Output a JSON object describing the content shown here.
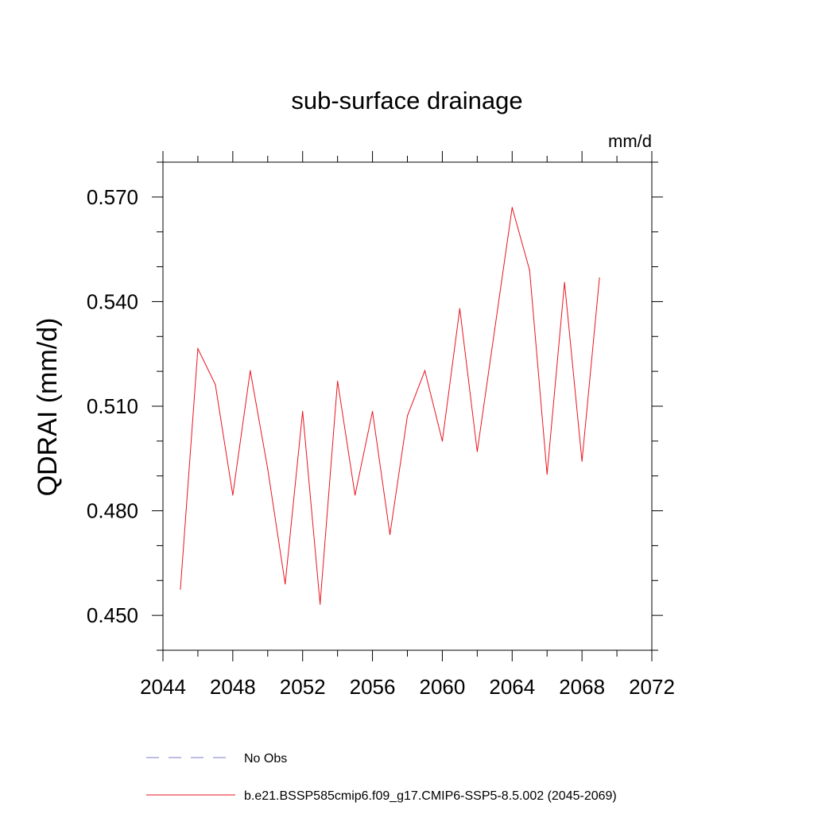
{
  "chart_data": {
    "type": "line",
    "title": "sub-surface drainage",
    "units_label": "mm/d",
    "xlabel": "",
    "ylabel": "QDRAI  (mm/d)",
    "xlim": [
      2044,
      2072
    ],
    "ylim": [
      0.44,
      0.58
    ],
    "x_ticks": [
      2044,
      2048,
      2052,
      2056,
      2060,
      2064,
      2068,
      2072
    ],
    "x_tick_labels": [
      "2044",
      "2048",
      "2052",
      "2056",
      "2060",
      "2064",
      "2068",
      "2072"
    ],
    "x_minor_ticks": [
      2046,
      2050,
      2054,
      2058,
      2062,
      2066,
      2070
    ],
    "y_ticks": [
      0.45,
      0.48,
      0.51,
      0.54,
      0.57
    ],
    "y_tick_labels": [
      "0.450",
      "0.480",
      "0.510",
      "0.540",
      "0.570"
    ],
    "y_minor_ticks": [
      0.44,
      0.46,
      0.47,
      0.49,
      0.5,
      0.52,
      0.53,
      0.55,
      0.56,
      0.58
    ],
    "grid": false,
    "series": [
      {
        "name": "b.e21.BSSP585cmip6.f09_g17.CMIP6-SSP5-8.5.002 (2045-2069)",
        "color": "#e8141e",
        "style": "solid",
        "x": [
          2045,
          2046,
          2047,
          2048,
          2049,
          2050,
          2051,
          2052,
          2053,
          2054,
          2055,
          2056,
          2057,
          2058,
          2059,
          2060,
          2061,
          2062,
          2063,
          2064,
          2065,
          2066,
          2067,
          2068,
          2069
        ],
        "values": [
          0.4575,
          0.5265,
          0.5162,
          0.4845,
          0.5202,
          0.492,
          0.459,
          0.5085,
          0.4532,
          0.5172,
          0.4845,
          0.5085,
          0.4732,
          0.5072,
          0.5202,
          0.5,
          0.538,
          0.497,
          0.532,
          0.567,
          0.549,
          0.4905,
          0.5455,
          0.4942,
          0.5468
        ]
      }
    ],
    "legend": {
      "position": "bottom",
      "entries": [
        {
          "label": "No Obs",
          "color": "#7b7bc8",
          "style": "dashed"
        },
        {
          "label": "b.e21.BSSP585cmip6.f09_g17.CMIP6-SSP5-8.5.002 (2045-2069)",
          "color": "#e8141e",
          "style": "solid"
        }
      ]
    }
  }
}
